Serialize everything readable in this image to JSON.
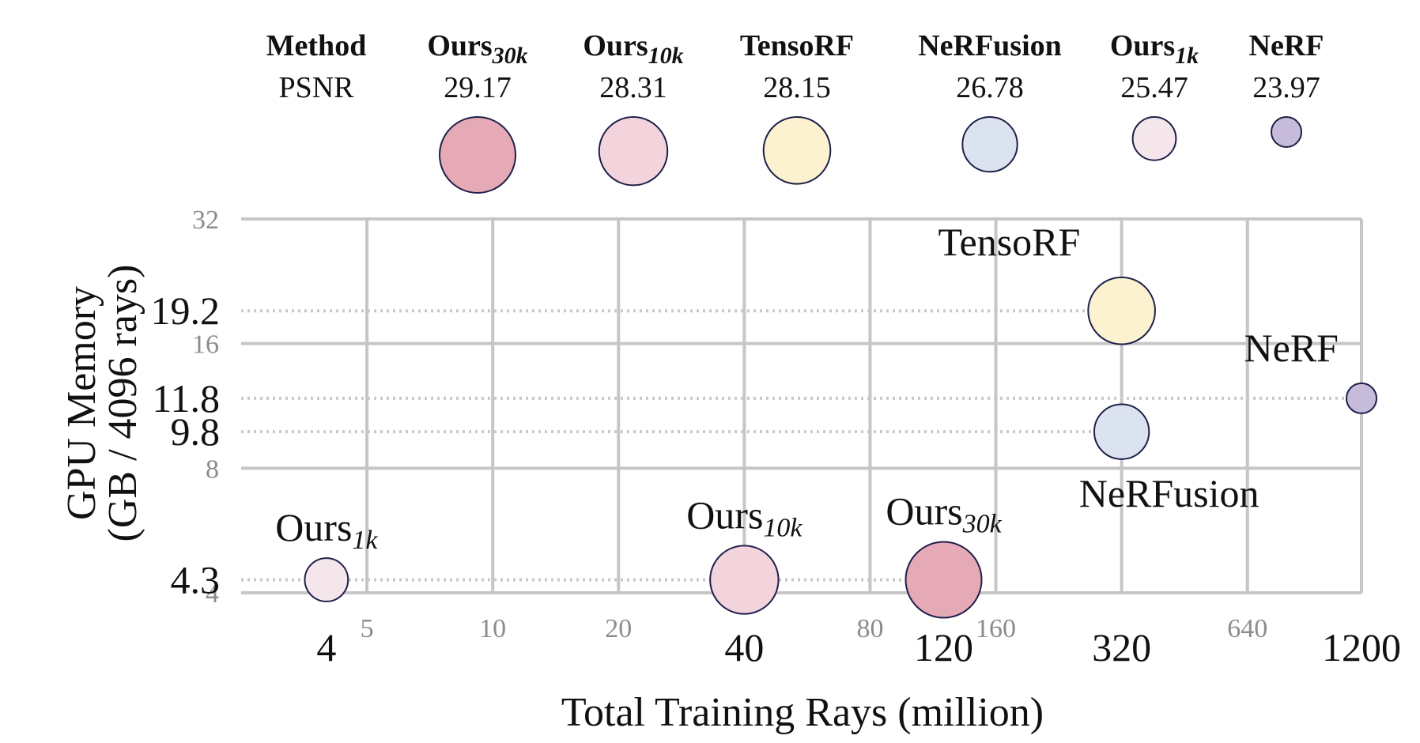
{
  "chart_data": {
    "type": "scatter",
    "subtype": "bubble",
    "x_scale": "log2",
    "y_scale": "log2",
    "xlabel": "Total Training Rays (million)",
    "ylabel": [
      "GPU Memory",
      "(GB / 4096 rays)"
    ],
    "xlim": [
      2.5,
      1200
    ],
    "ylim": [
      4,
      32
    ],
    "grid": true,
    "x_gridlines": [
      5,
      10,
      20,
      40,
      80,
      160,
      320,
      640,
      1200
    ],
    "y_gridlines": [
      4,
      8,
      16,
      32
    ],
    "x_minor_ticks": [
      "5",
      "10",
      "20",
      "80",
      "160",
      "640"
    ],
    "x_major_ticks": [
      {
        "value": 4,
        "label": "4"
      },
      {
        "value": 40,
        "label": "40"
      },
      {
        "value": 120,
        "label": "120"
      },
      {
        "value": 320,
        "label": "320"
      },
      {
        "value": 1200,
        "label": "1200"
      }
    ],
    "y_minor_ticks": [
      {
        "value": 4,
        "label": "4"
      },
      {
        "value": 8,
        "label": "8"
      },
      {
        "value": 16,
        "label": "16"
      },
      {
        "value": 32,
        "label": "32"
      }
    ],
    "y_major_ticks": [
      {
        "value": 4.3,
        "label": "4.3"
      },
      {
        "value": 9.8,
        "label": "9.8"
      },
      {
        "value": 11.8,
        "label": "11.8"
      },
      {
        "value": 19.2,
        "label": "19.2"
      }
    ],
    "legend": {
      "header": {
        "method": "Method",
        "metric": "PSNR"
      },
      "placement": "top"
    },
    "points": [
      {
        "key": "ours30k",
        "base": "Ours",
        "sub": "30k",
        "x": 120,
        "y": 4.3,
        "psnr": 29.17,
        "psnr_label": "29.17",
        "color": "#e5aab5",
        "label_side": "above"
      },
      {
        "key": "ours10k",
        "base": "Ours",
        "sub": "10k",
        "x": 40,
        "y": 4.3,
        "psnr": 28.31,
        "psnr_label": "28.31",
        "color": "#f3d4dd",
        "label_side": "above"
      },
      {
        "key": "tensorf",
        "base": "TensoRF",
        "sub": "",
        "x": 320,
        "y": 19.2,
        "psnr": 28.15,
        "psnr_label": "28.15",
        "color": "#fcf2cf",
        "label_side": "above-left"
      },
      {
        "key": "nerfusion",
        "base": "NeRFusion",
        "sub": "",
        "x": 320,
        "y": 9.8,
        "psnr": 26.78,
        "psnr_label": "26.78",
        "color": "#dbe2f0",
        "label_side": "below"
      },
      {
        "key": "ours1k",
        "base": "Ours",
        "sub": "1k",
        "x": 4,
        "y": 4.3,
        "psnr": 25.47,
        "psnr_label": "25.47",
        "color": "#f5e6ec",
        "label_side": "above"
      },
      {
        "key": "nerf",
        "base": "NeRF",
        "sub": "",
        "x": 1200,
        "y": 11.8,
        "psnr": 23.97,
        "psnr_label": "23.97",
        "color": "#c6bcd9",
        "label_side": "above-left"
      }
    ]
  }
}
